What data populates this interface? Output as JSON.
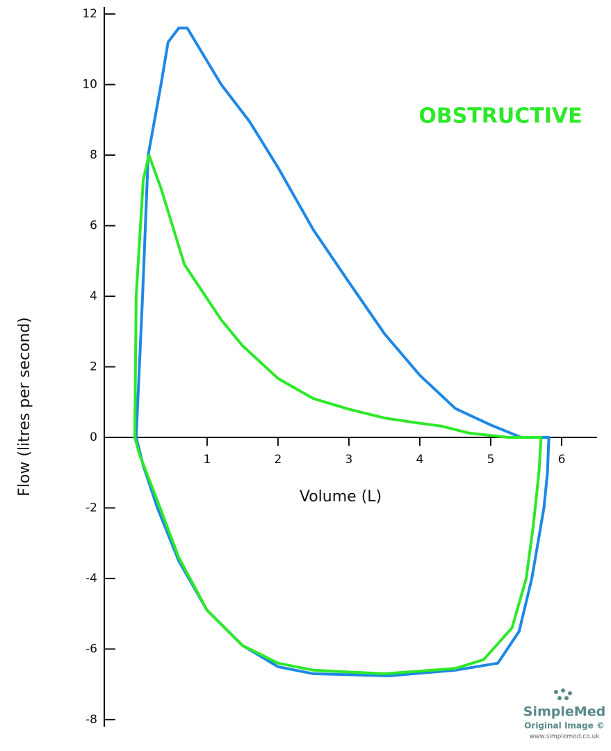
{
  "chart_data": {
    "type": "line",
    "annotation": "OBSTRUCTIVE",
    "annotation_color": "#2ee82a",
    "x_label": "Volume (L)",
    "y_label": "Flow (litres per second)",
    "xlim": [
      -0.45,
      6.5
    ],
    "xticks": [
      1,
      2,
      3,
      4,
      5,
      6
    ],
    "ylim": [
      -8.2,
      12.2
    ],
    "yticks": [
      12,
      10,
      8,
      6,
      4,
      2,
      0,
      -2,
      -4,
      -6,
      -8
    ],
    "grid": false,
    "series": [
      {
        "color": "#1e88e5",
        "x": [
          0,
          0.09,
          0.17,
          0.35,
          0.45,
          0.6,
          0.72,
          0.9,
          1.2,
          1.6,
          2,
          2.5,
          3,
          3.5,
          4,
          4.5,
          5,
          5.43,
          5.82,
          5.8,
          5.75,
          5.58,
          5.4,
          5.1,
          4.5,
          3.57,
          2.5,
          2,
          1.5,
          1,
          0.6,
          0.3,
          0.1,
          0
        ],
        "values": [
          0,
          4,
          8,
          10,
          11.2,
          11.6,
          11.6,
          11,
          10,
          8.95,
          7.65,
          5.88,
          4.4,
          2.94,
          1.76,
          0.82,
          0.35,
          0,
          0,
          -1,
          -2,
          -4,
          -5.5,
          -6.4,
          -6.6,
          -6.76,
          -6.7,
          -6.5,
          -5.9,
          -4.9,
          -3.5,
          -2,
          -0.8,
          0
        ]
      },
      {
        "color": "#2ee82a",
        "x": [
          -0.02,
          0,
          0.1,
          0.18,
          0.35,
          0.68,
          1.2,
          1.5,
          2,
          2.5,
          3,
          3.5,
          4,
          4.3,
          4.7,
          5.25,
          5.71,
          5.68,
          5.6,
          5.5,
          5.3,
          4.9,
          4.5,
          3.5,
          2.5,
          2,
          1.5,
          1,
          0.6,
          0.3,
          0.05,
          -0.02
        ],
        "values": [
          0,
          4,
          7.3,
          8,
          7.06,
          4.9,
          3.33,
          2.6,
          1.67,
          1.1,
          0.8,
          0.55,
          0.4,
          0.32,
          0.12,
          0,
          0,
          -1,
          -2.5,
          -4,
          -5.4,
          -6.3,
          -6.55,
          -6.7,
          -6.6,
          -6.4,
          -5.9,
          -4.9,
          -3.4,
          -1.8,
          -0.5,
          0
        ]
      }
    ]
  },
  "watermark": {
    "brand": "SimpleMed",
    "note": "Original Image ©",
    "url": "www.simplemed.co.uk"
  }
}
